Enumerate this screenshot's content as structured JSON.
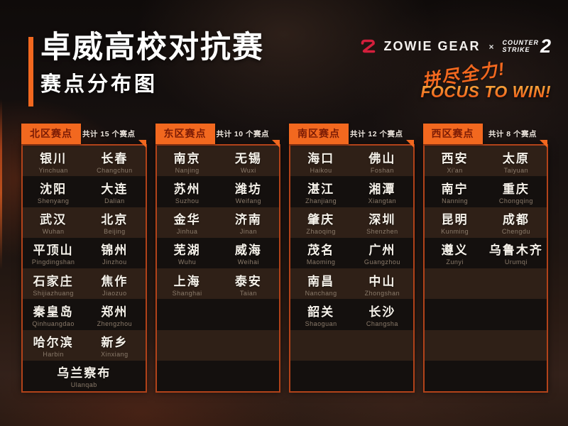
{
  "page": {
    "title": "卓威高校对抗赛",
    "subtitle": "赛点分布图"
  },
  "brand": {
    "zowie_label": "ZOWIE GEAR",
    "cross": "×",
    "cs_line1": "COUNTER",
    "cs_line2": "STRIKE",
    "cs_number": "2",
    "slogan_zh": "拼尽全力!",
    "slogan_en": "FOCUS TO WIN!"
  },
  "colors": {
    "accent_orange": "#F2681F",
    "panel_border": "#B2431A",
    "stripe_light": "#2F2017",
    "stripe_dark": "#14100E",
    "tab_text": "#7C1C05",
    "zowie_red": "#D41F3C",
    "pinyin_gray": "#8B7B6B",
    "slogan_gradient_top": "#F8AE40",
    "slogan_gradient_bottom": "#EE5816"
  },
  "regions": [
    {
      "name": "北区赛点",
      "count_label": "共计 15 个赛点",
      "rows": [
        [
          {
            "zh": "银川",
            "py": "Yinchuan"
          },
          {
            "zh": "长春",
            "py": "Changchun"
          }
        ],
        [
          {
            "zh": "沈阳",
            "py": "Shenyang"
          },
          {
            "zh": "大连",
            "py": "Dalian"
          }
        ],
        [
          {
            "zh": "武汉",
            "py": "Wuhan"
          },
          {
            "zh": "北京",
            "py": "Beijing"
          }
        ],
        [
          {
            "zh": "平顶山",
            "py": "Pingdingshan"
          },
          {
            "zh": "锦州",
            "py": "Jinzhou"
          }
        ],
        [
          {
            "zh": "石家庄",
            "py": "Shijiazhuang"
          },
          {
            "zh": "焦作",
            "py": "Jiaozuo"
          }
        ],
        [
          {
            "zh": "秦皇岛",
            "py": "Qinhuangdao"
          },
          {
            "zh": "郑州",
            "py": "Zhengzhou"
          }
        ],
        [
          {
            "zh": "哈尔滨",
            "py": "Harbin"
          },
          {
            "zh": "新乡",
            "py": "Xinxiang"
          }
        ],
        [
          {
            "zh": "乌兰察布",
            "py": "Ulanqab"
          }
        ]
      ]
    },
    {
      "name": "东区赛点",
      "count_label": "共计 10 个赛点",
      "rows": [
        [
          {
            "zh": "南京",
            "py": "Nanjing"
          },
          {
            "zh": "无锡",
            "py": "Wuxi"
          }
        ],
        [
          {
            "zh": "苏州",
            "py": "Suzhou"
          },
          {
            "zh": "潍坊",
            "py": "Weifang"
          }
        ],
        [
          {
            "zh": "金华",
            "py": "Jinhua"
          },
          {
            "zh": "济南",
            "py": "Jinan"
          }
        ],
        [
          {
            "zh": "芜湖",
            "py": "Wuhu"
          },
          {
            "zh": "威海",
            "py": "Weihai"
          }
        ],
        [
          {
            "zh": "上海",
            "py": "Shanghai"
          },
          {
            "zh": "泰安",
            "py": "Taian"
          }
        ]
      ]
    },
    {
      "name": "南区赛点",
      "count_label": "共计 12 个赛点",
      "rows": [
        [
          {
            "zh": "海口",
            "py": "Haikou"
          },
          {
            "zh": "佛山",
            "py": "Foshan"
          }
        ],
        [
          {
            "zh": "湛江",
            "py": "Zhanjiang"
          },
          {
            "zh": "湘潭",
            "py": "Xiangtan"
          }
        ],
        [
          {
            "zh": "肇庆",
            "py": "Zhaoqing"
          },
          {
            "zh": "深圳",
            "py": "Shenzhen"
          }
        ],
        [
          {
            "zh": "茂名",
            "py": "Maoming"
          },
          {
            "zh": "广州",
            "py": "Guangzhou"
          }
        ],
        [
          {
            "zh": "南昌",
            "py": "Nanchang"
          },
          {
            "zh": "中山",
            "py": "Zhongshan"
          }
        ],
        [
          {
            "zh": "韶关",
            "py": "Shaoguan"
          },
          {
            "zh": "长沙",
            "py": "Changsha"
          }
        ]
      ]
    },
    {
      "name": "西区赛点",
      "count_label": "共计 8 个赛点",
      "rows": [
        [
          {
            "zh": "西安",
            "py": "Xi'an"
          },
          {
            "zh": "太原",
            "py": "Taiyuan"
          }
        ],
        [
          {
            "zh": "南宁",
            "py": "Nanning"
          },
          {
            "zh": "重庆",
            "py": "Chongqing"
          }
        ],
        [
          {
            "zh": "昆明",
            "py": "Kunming"
          },
          {
            "zh": "成都",
            "py": "Chengdu"
          }
        ],
        [
          {
            "zh": "遵义",
            "py": "Zunyi"
          },
          {
            "zh": "乌鲁木齐",
            "py": "Urumqi"
          }
        ]
      ]
    }
  ]
}
